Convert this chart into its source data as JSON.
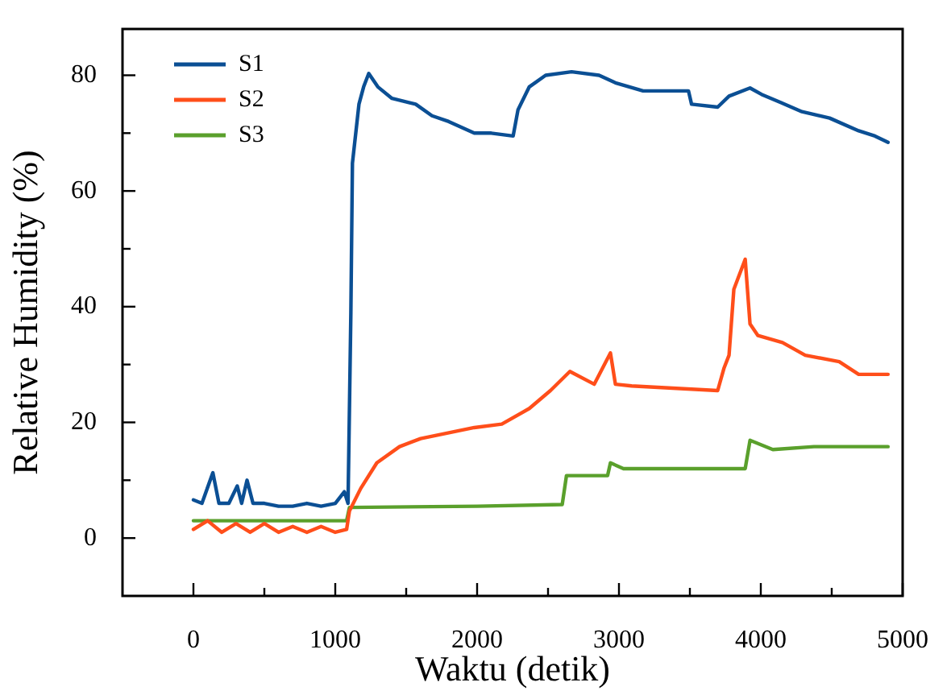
{
  "chart_data": {
    "type": "line",
    "xlabel": "Waktu (detik)",
    "ylabel": "Relative Humidity (%)",
    "xlim": [
      -500,
      5000
    ],
    "ylim": [
      -10,
      88
    ],
    "xticks": [
      0,
      {
        "value": 500,
        "label": null
      },
      1000,
      {
        "value": 1500,
        "label": null
      },
      2000,
      {
        "value": 2500,
        "label": null
      },
      3000,
      {
        "value": 3500,
        "label": null
      },
      4000,
      {
        "value": 4500,
        "label": null
      },
      5000
    ],
    "yticks": [
      0,
      {
        "value": 10,
        "label": null
      },
      20,
      {
        "value": 30,
        "label": null
      },
      40,
      {
        "value": 50,
        "label": null
      },
      60,
      {
        "value": 70,
        "label": null
      },
      80
    ],
    "grid": false,
    "legend": "top left",
    "marker": "none",
    "line_style": "solid",
    "series": [
      {
        "name": "S1",
        "color": "#0b4f94",
        "x": [
          0,
          60,
          137,
          180,
          250,
          309,
          340,
          378,
          420,
          500,
          600,
          700,
          800,
          900,
          1000,
          1064,
          1090,
          1110,
          1121,
          1167,
          1200,
          1236,
          1300,
          1400,
          1567,
          1682,
          1800,
          1980,
          2100,
          2254,
          2288,
          2368,
          2483,
          2666,
          2860,
          2975,
          3170,
          3490,
          3512,
          3696,
          3776,
          3924,
          4005,
          4140,
          4290,
          4485,
          4690,
          4805,
          4897
        ],
        "values": [
          6.6,
          6,
          11.3,
          6,
          6,
          9,
          6,
          10,
          6,
          6,
          5.5,
          5.5,
          6,
          5.5,
          6,
          8,
          6,
          39,
          64.8,
          75,
          78,
          80.3,
          78,
          76,
          75,
          73,
          72,
          70,
          70,
          69.5,
          74,
          78,
          80,
          80.6,
          80,
          78.7,
          77.3,
          77.3,
          75,
          74.5,
          76.4,
          77.8,
          76.7,
          75.3,
          73.7,
          72.6,
          70.4,
          69.5,
          68.4
        ]
      },
      {
        "name": "S2",
        "color": "#ff4e1a",
        "x": [
          0,
          100,
          200,
          300,
          400,
          500,
          600,
          700,
          800,
          900,
          1000,
          1080,
          1100,
          1180,
          1293,
          1453,
          1602,
          1980,
          2174,
          2368,
          2517,
          2654,
          2826,
          2940,
          2975,
          3089,
          3696,
          3741,
          3776,
          3810,
          3890,
          3924,
          3980,
          4153,
          4313,
          4553,
          4690,
          4897
        ],
        "values": [
          1.5,
          3,
          1,
          2.5,
          1,
          2.5,
          1,
          2,
          1,
          2,
          1,
          1.5,
          4.7,
          8.6,
          13,
          15.8,
          17.2,
          19.1,
          19.7,
          22.4,
          25.5,
          28.8,
          26.6,
          32,
          26.6,
          26.3,
          25.5,
          29.4,
          31.6,
          43,
          48.2,
          37,
          35,
          33.8,
          31.6,
          30.5,
          28.3,
          28.3
        ]
      },
      {
        "name": "S3",
        "color": "#5aa02c",
        "x": [
          0,
          200,
          400,
          600,
          800,
          1000,
          1080,
          1100,
          2000,
          2600,
          2630,
          2920,
          2940,
          3032,
          3850,
          3890,
          3924,
          4085,
          4375,
          4897
        ],
        "values": [
          3,
          3,
          3,
          3,
          3,
          3,
          3,
          5.3,
          5.5,
          5.8,
          10.8,
          10.8,
          13,
          12,
          12,
          12,
          16.9,
          15.3,
          15.8,
          15.8
        ]
      }
    ]
  }
}
